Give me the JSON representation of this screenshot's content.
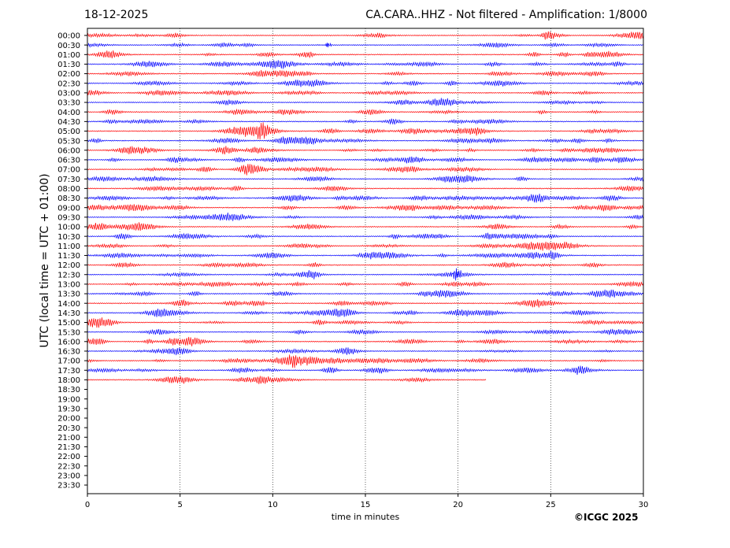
{
  "chart_data": {
    "type": "line",
    "date": "18-12-2025",
    "title": "CA.CARA..HHZ - Not filtered - Amplification: 1/8000",
    "ylabel": "UTC (local time = UTC + 01:00)",
    "xlabel": "time in minutes",
    "xlim": [
      0,
      30
    ],
    "x_ticks": [
      0,
      5,
      10,
      15,
      20,
      25,
      30
    ],
    "grid": "vertical dotted lines at 5, 10, 15, 20, 25",
    "row_labels": [
      "00:00",
      "00:30",
      "01:00",
      "01:30",
      "02:00",
      "02:30",
      "03:00",
      "03:30",
      "04:00",
      "04:30",
      "05:00",
      "05:30",
      "06:00",
      "06:30",
      "07:00",
      "07:30",
      "08:00",
      "08:30",
      "09:00",
      "09:30",
      "10:00",
      "10:30",
      "11:00",
      "11:30",
      "12:00",
      "12:30",
      "13:00",
      "13:30",
      "14:00",
      "14:30",
      "15:00",
      "15:30",
      "16:00",
      "16:30",
      "17:00",
      "17:30",
      "18:00",
      "18:30",
      "19:00",
      "19:30",
      "20:00",
      "20:30",
      "21:00",
      "21:30",
      "22:00",
      "22:30",
      "23:00",
      "23:30"
    ],
    "trace_colors": [
      "#ff0000",
      "#0000ff"
    ],
    "traces_recorded": 37,
    "last_trace_end_minute": 21.5,
    "events": [
      {
        "row": "00:30",
        "minute": 13.0,
        "amplitude": "small"
      },
      {
        "row": "12:30",
        "minute": 19.9,
        "amplitude": "large"
      }
    ]
  },
  "copyright": "©ICGC 2025"
}
